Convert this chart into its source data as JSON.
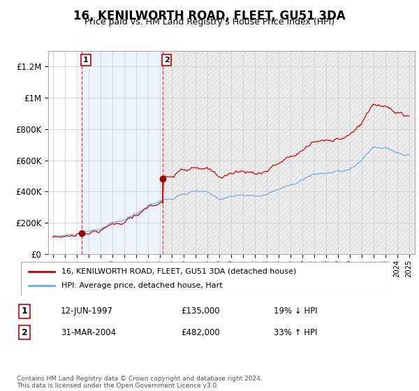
{
  "title": "16, KENILWORTH ROAD, FLEET, GU51 3DA",
  "subtitle": "Price paid vs. HM Land Registry's House Price Index (HPI)",
  "legend_line1": "16, KENILWORTH ROAD, FLEET, GU51 3DA (detached house)",
  "legend_line2": "HPI: Average price, detached house, Hart",
  "sale1_date": "12-JUN-1997",
  "sale1_price": 135000,
  "sale1_note": "19% ↓ HPI",
  "sale2_date": "31-MAR-2004",
  "sale2_price": 482000,
  "sale2_note": "33% ↑ HPI",
  "footnote": "Contains HM Land Registry data © Crown copyright and database right 2024.\nThis data is licensed under the Open Government Licence v3.0.",
  "hpi_line_color": "#6aaee8",
  "price_line_color": "#cc0000",
  "sale_dot_color": "#990000",
  "vline_color": "#ee3333",
  "shade_color": "#dce9f5",
  "shade_alpha": 0.55,
  "hatch_color": "#bbbbbb",
  "ylim": [
    0,
    1300000
  ],
  "yticks": [
    0,
    200000,
    400000,
    600000,
    800000,
    1000000,
    1200000
  ],
  "xstart": 1994.6,
  "xend": 2025.5,
  "sale1_year": 1997.45,
  "sale2_year": 2004.25
}
